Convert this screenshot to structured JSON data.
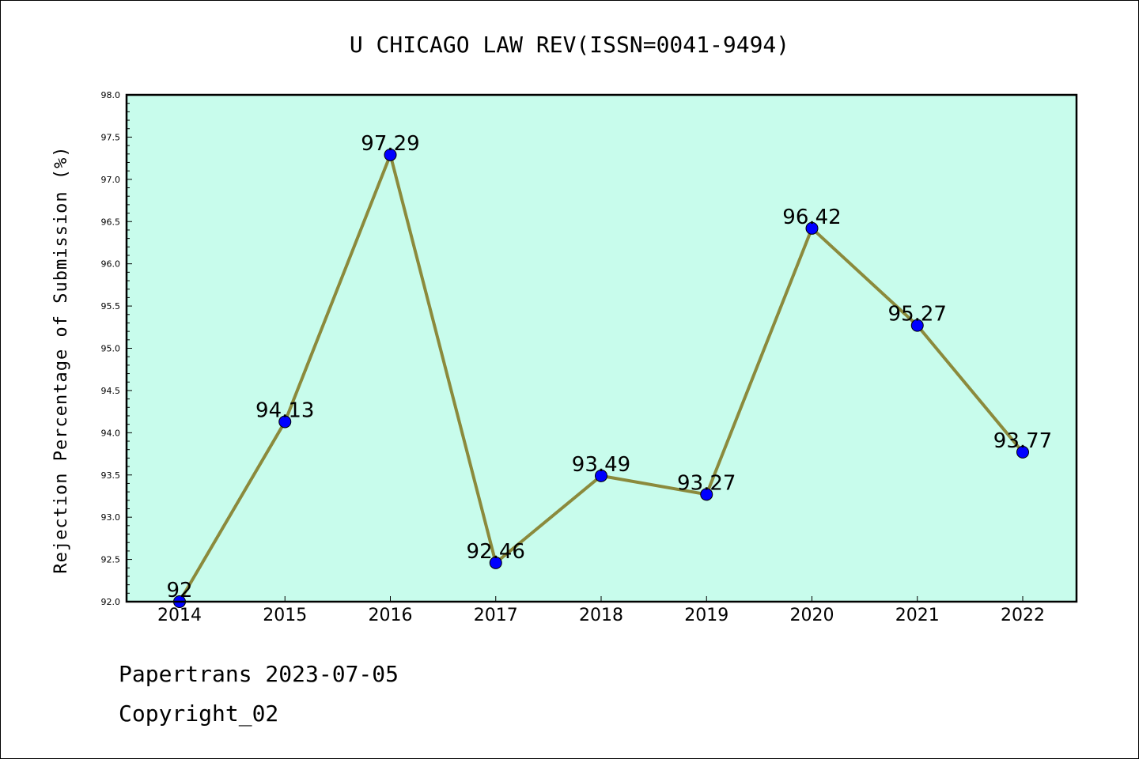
{
  "chart_data": {
    "type": "line",
    "title": "U CHICAGO LAW REV(ISSN=0041-9494)",
    "ylabel": "Rejection Percentage of Submission (%)",
    "xlabel": "",
    "x": [
      "2014",
      "2015",
      "2016",
      "2017",
      "2018",
      "2019",
      "2020",
      "2021",
      "2022"
    ],
    "values": [
      92,
      94.13,
      97.29,
      92.46,
      93.49,
      93.27,
      96.42,
      95.27,
      93.77
    ],
    "data_labels": [
      "92",
      "94.13",
      "97.29",
      "92.46",
      "93.49",
      "93.27",
      "96.42",
      "95.27",
      "93.77"
    ],
    "ylim": [
      92.0,
      98.0
    ],
    "yticks": [
      "92.0",
      "92.5",
      "93.0",
      "93.5",
      "94.0",
      "94.5",
      "95.0",
      "95.5",
      "96.0",
      "96.5",
      "97.0",
      "97.5",
      "98.0"
    ],
    "grid": false,
    "colors": {
      "plot_background": "#c8fcec",
      "line": "#8b8a3c",
      "marker": "#0000ff"
    }
  },
  "footer": {
    "line1": "Papertrans 2023-07-05",
    "line2": "Copyright_02"
  }
}
